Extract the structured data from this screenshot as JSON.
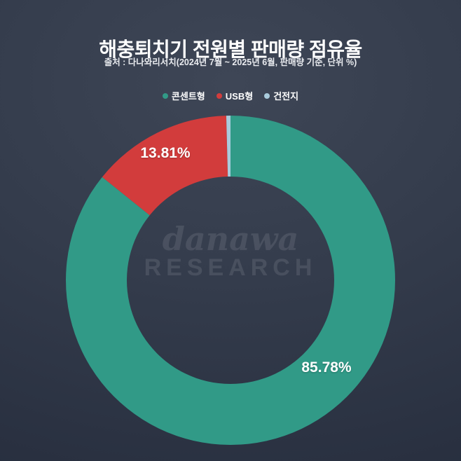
{
  "title": "해충퇴치기 전원별 판매량 점유율",
  "subtitle": "출처 : 다나와리서치(2024년 7월 ~ 2025년 6월, 판매량 기준, 단위 %)",
  "watermark": {
    "line1": "danawa",
    "line2": "RESEARCH"
  },
  "legend": [
    {
      "label": "콘센트형",
      "color": "#319a87"
    },
    {
      "label": "USB형",
      "color": "#d23c3c"
    },
    {
      "label": "건전지",
      "color": "#a9cbdc"
    }
  ],
  "chart_data": {
    "type": "pie",
    "donut": true,
    "title": "해충퇴치기 전원별 판매량 점유율",
    "categories": [
      "콘센트형",
      "USB형",
      "건전지"
    ],
    "values": [
      85.78,
      13.81,
      0.41
    ],
    "colors": [
      "#319a87",
      "#d23c3c",
      "#a9cbdc"
    ],
    "value_labels": [
      "85.78%",
      "13.81%"
    ],
    "unit": "%",
    "start_angle_deg": 0,
    "direction": "clockwise",
    "legend_position": "top",
    "inner_radius_ratio": 0.63
  }
}
